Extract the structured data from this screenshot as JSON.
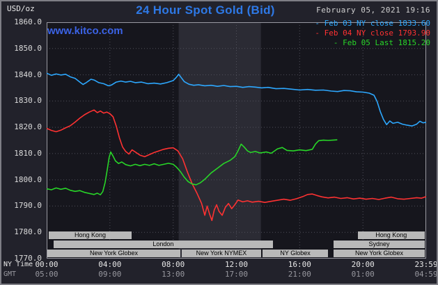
{
  "header": {
    "units_label": "USD/oz",
    "title": "24 Hour Spot Gold (Bid)",
    "datetime": "February 05, 2021 19:16",
    "watermark": "www.kitco.com"
  },
  "legend": {
    "marker": "-",
    "entries": [
      {
        "label": "Feb 03 NY close",
        "value": "1833.60",
        "color": "#2da8ff"
      },
      {
        "label": "Feb 04 NY close",
        "value": "1793.90",
        "color": "#ff3232"
      },
      {
        "label": "Feb 05 Last",
        "value": "1815.20",
        "color": "#28d628"
      }
    ]
  },
  "axes": {
    "y_ticks": [
      "1860.0",
      "1850.0",
      "1840.0",
      "1830.0",
      "1820.0",
      "1810.0",
      "1800.0",
      "1790.0",
      "1780.0",
      "1770.0"
    ],
    "x_rows": [
      {
        "label": "NY Time",
        "ticks": [
          "00:00",
          "04:00",
          "08:00",
          "12:00",
          "16:00",
          "20:00",
          "23:59"
        ]
      },
      {
        "label": "GMT",
        "ticks": [
          "05:00",
          "09:00",
          "13:00",
          "17:00",
          "21:00",
          "01:00",
          "04:59"
        ]
      }
    ]
  },
  "colors": {
    "background": "#22222b",
    "plot_bg": "#16161d",
    "band": "#2b2b34",
    "grid": "#50505b",
    "plot_border": "#9a9aa2",
    "title_blue": "#2e79e6",
    "watermark_blue": "#3b63e6",
    "session_bar": "#b9b9b9",
    "axis_text": "#e8e8e8",
    "gmt_text": "#98989f"
  },
  "chart_data": {
    "type": "line",
    "title": "24 Hour Spot Gold (Bid)",
    "ylabel": "USD/oz",
    "ylim": [
      1770,
      1860
    ],
    "xlim_hours": [
      0,
      24
    ],
    "y_gridline_step": 10,
    "x_gridline_hours": [
      4,
      8,
      12,
      16,
      20
    ],
    "x_tick_hours": [
      0,
      4,
      8,
      12,
      16,
      20,
      24
    ],
    "nymex_highlight_hours": [
      8.35,
      13.55
    ],
    "grid": "dotted",
    "legend_position": "top-right",
    "series": [
      {
        "id": "feb03",
        "name": "Feb 03 NY close 1833.60",
        "color": "#2da8ff",
        "points": [
          [
            0,
            1840.6
          ],
          [
            0.3,
            1839.8
          ],
          [
            0.6,
            1840.3
          ],
          [
            0.9,
            1839.9
          ],
          [
            1.2,
            1840.2
          ],
          [
            1.5,
            1839.2
          ],
          [
            1.8,
            1838.6
          ],
          [
            2.1,
            1837.2
          ],
          [
            2.3,
            1836.3
          ],
          [
            2.5,
            1837.0
          ],
          [
            2.8,
            1838.3
          ],
          [
            3.0,
            1838.0
          ],
          [
            3.3,
            1837.0
          ],
          [
            3.6,
            1836.6
          ],
          [
            3.9,
            1835.8
          ],
          [
            4.1,
            1836.1
          ],
          [
            4.4,
            1837.2
          ],
          [
            4.7,
            1837.6
          ],
          [
            5.0,
            1837.2
          ],
          [
            5.3,
            1837.5
          ],
          [
            5.6,
            1837.0
          ],
          [
            6.0,
            1837.2
          ],
          [
            6.4,
            1836.6
          ],
          [
            6.8,
            1836.8
          ],
          [
            7.2,
            1836.5
          ],
          [
            7.6,
            1837.0
          ],
          [
            8.0,
            1837.8
          ],
          [
            8.2,
            1839.0
          ],
          [
            8.35,
            1840.2
          ],
          [
            8.5,
            1839.0
          ],
          [
            8.7,
            1837.4
          ],
          [
            9.0,
            1836.4
          ],
          [
            9.3,
            1836.0
          ],
          [
            9.6,
            1836.2
          ],
          [
            10.0,
            1835.8
          ],
          [
            10.4,
            1836.0
          ],
          [
            10.8,
            1835.6
          ],
          [
            11.2,
            1835.9
          ],
          [
            11.6,
            1835.5
          ],
          [
            12.0,
            1835.6
          ],
          [
            12.4,
            1835.2
          ],
          [
            12.8,
            1835.5
          ],
          [
            13.2,
            1835.3
          ],
          [
            13.6,
            1835.0
          ],
          [
            14.0,
            1835.2
          ],
          [
            14.5,
            1834.7
          ],
          [
            15.0,
            1834.8
          ],
          [
            15.5,
            1834.5
          ],
          [
            16.0,
            1834.2
          ],
          [
            16.5,
            1834.4
          ],
          [
            17.0,
            1834.1
          ],
          [
            17.5,
            1834.2
          ],
          [
            18.0,
            1833.8
          ],
          [
            18.4,
            1833.6
          ],
          [
            18.8,
            1834.0
          ],
          [
            19.2,
            1833.9
          ],
          [
            19.6,
            1833.5
          ],
          [
            20.0,
            1833.4
          ],
          [
            20.4,
            1833.0
          ],
          [
            20.7,
            1832.2
          ],
          [
            20.9,
            1829.8
          ],
          [
            21.1,
            1826.0
          ],
          [
            21.3,
            1823.0
          ],
          [
            21.5,
            1821.0
          ],
          [
            21.7,
            1822.4
          ],
          [
            21.9,
            1821.5
          ],
          [
            22.2,
            1821.9
          ],
          [
            22.5,
            1821.2
          ],
          [
            22.8,
            1820.8
          ],
          [
            23.1,
            1820.5
          ],
          [
            23.4,
            1821.2
          ],
          [
            23.6,
            1822.3
          ],
          [
            23.8,
            1821.7
          ],
          [
            24,
            1821.9
          ]
        ]
      },
      {
        "id": "feb04",
        "name": "Feb 04 NY close 1793.90",
        "color": "#ff3232",
        "points": [
          [
            0,
            1819.6
          ],
          [
            0.3,
            1818.8
          ],
          [
            0.6,
            1818.3
          ],
          [
            0.9,
            1818.9
          ],
          [
            1.2,
            1819.8
          ],
          [
            1.5,
            1820.6
          ],
          [
            1.8,
            1822.0
          ],
          [
            2.1,
            1823.5
          ],
          [
            2.4,
            1824.8
          ],
          [
            2.7,
            1825.8
          ],
          [
            3.0,
            1826.6
          ],
          [
            3.2,
            1825.6
          ],
          [
            3.4,
            1826.2
          ],
          [
            3.6,
            1825.4
          ],
          [
            3.8,
            1825.8
          ],
          [
            4.0,
            1825.2
          ],
          [
            4.2,
            1824.0
          ],
          [
            4.4,
            1820.5
          ],
          [
            4.6,
            1816.0
          ],
          [
            4.8,
            1812.5
          ],
          [
            5.0,
            1810.8
          ],
          [
            5.2,
            1809.8
          ],
          [
            5.4,
            1811.4
          ],
          [
            5.6,
            1810.6
          ],
          [
            5.9,
            1809.4
          ],
          [
            6.2,
            1808.8
          ],
          [
            6.5,
            1809.6
          ],
          [
            6.8,
            1810.4
          ],
          [
            7.1,
            1811.0
          ],
          [
            7.4,
            1811.6
          ],
          [
            7.7,
            1812.0
          ],
          [
            8.0,
            1812.2
          ],
          [
            8.3,
            1811.0
          ],
          [
            8.6,
            1808.0
          ],
          [
            8.9,
            1803.0
          ],
          [
            9.2,
            1798.5
          ],
          [
            9.5,
            1795.0
          ],
          [
            9.8,
            1791.0
          ],
          [
            10.0,
            1786.5
          ],
          [
            10.15,
            1790.0
          ],
          [
            10.3,
            1787.0
          ],
          [
            10.45,
            1784.5
          ],
          [
            10.6,
            1788.5
          ],
          [
            10.75,
            1790.5
          ],
          [
            10.9,
            1788.0
          ],
          [
            11.1,
            1786.5
          ],
          [
            11.3,
            1789.5
          ],
          [
            11.5,
            1791.0
          ],
          [
            11.7,
            1789.0
          ],
          [
            11.9,
            1790.5
          ],
          [
            12.1,
            1792.3
          ],
          [
            12.4,
            1791.6
          ],
          [
            12.7,
            1792.0
          ],
          [
            13.0,
            1791.5
          ],
          [
            13.4,
            1791.8
          ],
          [
            13.8,
            1791.4
          ],
          [
            14.2,
            1791.8
          ],
          [
            14.6,
            1792.2
          ],
          [
            15.0,
            1792.6
          ],
          [
            15.4,
            1792.2
          ],
          [
            15.8,
            1792.8
          ],
          [
            16.2,
            1793.6
          ],
          [
            16.5,
            1794.4
          ],
          [
            16.8,
            1794.6
          ],
          [
            17.1,
            1794.0
          ],
          [
            17.4,
            1793.5
          ],
          [
            17.8,
            1793.1
          ],
          [
            18.2,
            1793.4
          ],
          [
            18.6,
            1792.9
          ],
          [
            19.0,
            1793.2
          ],
          [
            19.4,
            1792.7
          ],
          [
            19.8,
            1793.0
          ],
          [
            20.2,
            1792.6
          ],
          [
            20.6,
            1792.9
          ],
          [
            21.0,
            1792.5
          ],
          [
            21.4,
            1793.0
          ],
          [
            21.8,
            1793.4
          ],
          [
            22.2,
            1792.8
          ],
          [
            22.6,
            1792.6
          ],
          [
            23.0,
            1792.9
          ],
          [
            23.4,
            1793.2
          ],
          [
            23.7,
            1793.0
          ],
          [
            24,
            1793.6
          ]
        ]
      },
      {
        "id": "feb05",
        "name": "Feb 05 Last 1815.20",
        "color": "#28d628",
        "points": [
          [
            0,
            1796.6
          ],
          [
            0.3,
            1796.2
          ],
          [
            0.6,
            1796.9
          ],
          [
            0.9,
            1796.4
          ],
          [
            1.2,
            1796.8
          ],
          [
            1.5,
            1796.0
          ],
          [
            1.8,
            1795.6
          ],
          [
            2.1,
            1795.9
          ],
          [
            2.4,
            1795.2
          ],
          [
            2.7,
            1794.8
          ],
          [
            3.0,
            1794.4
          ],
          [
            3.2,
            1794.9
          ],
          [
            3.4,
            1794.3
          ],
          [
            3.55,
            1795.5
          ],
          [
            3.7,
            1799.0
          ],
          [
            3.85,
            1804.5
          ],
          [
            3.95,
            1808.5
          ],
          [
            4.05,
            1810.6
          ],
          [
            4.2,
            1809.0
          ],
          [
            4.35,
            1807.2
          ],
          [
            4.55,
            1806.2
          ],
          [
            4.75,
            1806.8
          ],
          [
            5.0,
            1805.8
          ],
          [
            5.3,
            1805.3
          ],
          [
            5.6,
            1805.9
          ],
          [
            5.9,
            1805.4
          ],
          [
            6.2,
            1805.9
          ],
          [
            6.5,
            1805.5
          ],
          [
            6.8,
            1806.1
          ],
          [
            7.1,
            1805.5
          ],
          [
            7.4,
            1805.9
          ],
          [
            7.7,
            1806.3
          ],
          [
            8.0,
            1805.9
          ],
          [
            8.2,
            1804.9
          ],
          [
            8.45,
            1803.2
          ],
          [
            8.7,
            1801.0
          ],
          [
            8.95,
            1799.3
          ],
          [
            9.2,
            1798.4
          ],
          [
            9.45,
            1798.1
          ],
          [
            9.7,
            1798.8
          ],
          [
            10.0,
            1800.2
          ],
          [
            10.4,
            1802.6
          ],
          [
            10.8,
            1804.4
          ],
          [
            11.2,
            1806.2
          ],
          [
            11.6,
            1807.4
          ],
          [
            11.9,
            1808.8
          ],
          [
            12.1,
            1811.0
          ],
          [
            12.3,
            1813.6
          ],
          [
            12.5,
            1812.4
          ],
          [
            12.7,
            1811.0
          ],
          [
            12.9,
            1810.4
          ],
          [
            13.2,
            1810.8
          ],
          [
            13.5,
            1810.2
          ],
          [
            13.9,
            1810.6
          ],
          [
            14.2,
            1810.1
          ],
          [
            14.6,
            1811.8
          ],
          [
            14.9,
            1812.3
          ],
          [
            15.2,
            1811.2
          ],
          [
            15.6,
            1811.0
          ],
          [
            16.0,
            1811.4
          ],
          [
            16.4,
            1811.1
          ],
          [
            16.8,
            1811.6
          ],
          [
            17.0,
            1813.6
          ],
          [
            17.2,
            1814.9
          ],
          [
            17.5,
            1815.1
          ],
          [
            17.8,
            1815.0
          ],
          [
            18.1,
            1815.1
          ],
          [
            18.35,
            1815.2
          ]
        ]
      }
    ],
    "sessions": [
      {
        "row": 0,
        "label": "Hong Kong",
        "start_h": 0.13,
        "end_h": 5.37
      },
      {
        "row": 0,
        "label": "Hong Kong",
        "start_h": 19.68,
        "end_h": 23.9
      },
      {
        "row": 1,
        "label": "London",
        "start_h": 0.44,
        "end_h": 14.3
      },
      {
        "row": 1,
        "label": "Sydney",
        "start_h": 18.15,
        "end_h": 23.9
      },
      {
        "row": 2,
        "label": "New York Globex",
        "start_h": 0.05,
        "end_h": 8.45
      },
      {
        "row": 2,
        "label": "New York NYMEX",
        "start_h": 8.55,
        "end_h": 13.55
      },
      {
        "row": 2,
        "label": "NY Globex",
        "start_h": 13.65,
        "end_h": 17.8
      },
      {
        "row": 2,
        "label": "New York Globex",
        "start_h": 18.15,
        "end_h": 23.9
      }
    ]
  }
}
